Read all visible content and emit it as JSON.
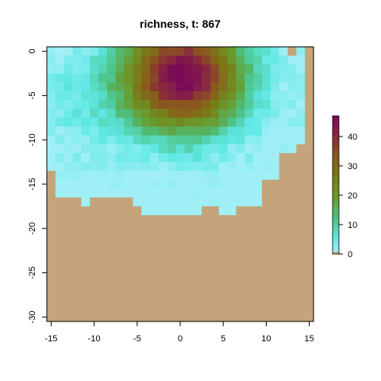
{
  "chart_data": {
    "type": "heatmap",
    "title": "richness, t: 867",
    "xlabel": "",
    "ylabel": "",
    "xlim": [
      -15.5,
      15.5
    ],
    "ylim": [
      -30.5,
      0.5
    ],
    "x_ticks": [
      "-15",
      "-10",
      "-5",
      "0",
      "5",
      "10",
      "15"
    ],
    "y_ticks": [
      "0",
      "-5",
      "-10",
      "-15",
      "-20",
      "-25",
      "-30"
    ],
    "x_tick_values": [
      -15,
      -10,
      -5,
      0,
      5,
      10,
      15
    ],
    "y_tick_values": [
      0,
      -5,
      -10,
      -15,
      -20,
      -25,
      -30
    ],
    "x_range": [
      -15,
      15
    ],
    "y_range": [
      -30,
      0
    ],
    "land_color": "#c4a47a",
    "colorbar": {
      "ticks": [
        "0",
        "10",
        "20",
        "30",
        "40"
      ],
      "tick_values": [
        0,
        10,
        20,
        30,
        40
      ],
      "range": [
        0,
        47
      ],
      "colors": [
        "#c4a47a",
        "#5ee8e4",
        "#4cc080",
        "#6a9a2c",
        "#7a7a18",
        "#8a5a1c",
        "#8a2a3c",
        "#7a0a58"
      ]
    },
    "land_boundary": {
      "note": "per-row last ocean column index for rows near edges",
      "row_left_land_from_y": -16,
      "bottom_land_from_y": -18
    },
    "grid": false,
    "legend": "right"
  }
}
